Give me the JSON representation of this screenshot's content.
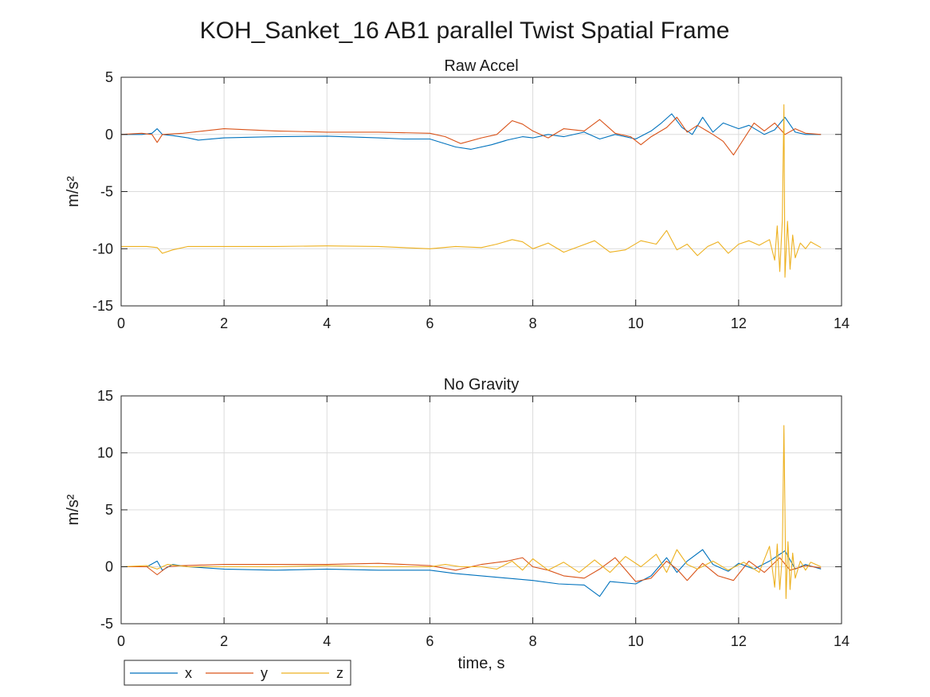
{
  "figure_title": "KOH_Sanket_16 AB1 parallel Twist Spatial Frame",
  "colors": {
    "x": "#0072BD",
    "y": "#D95319",
    "z": "#EDB120"
  },
  "legend": [
    "x",
    "y",
    "z"
  ],
  "chart_data": [
    {
      "type": "line",
      "title": "Raw Accel",
      "xlabel": "",
      "ylabel": "m/s²",
      "xlim": [
        0,
        14
      ],
      "ylim": [
        -15,
        5
      ],
      "xticks": [
        0,
        2,
        4,
        6,
        8,
        10,
        12,
        14
      ],
      "yticks": [
        -15,
        -10,
        -5,
        0,
        5
      ],
      "grid": true,
      "series": [
        {
          "name": "x",
          "points": [
            [
              0,
              0
            ],
            [
              0.4,
              0
            ],
            [
              0.6,
              0.1
            ],
            [
              0.7,
              0.5
            ],
            [
              0.8,
              0
            ],
            [
              1.0,
              -0.1
            ],
            [
              1.3,
              -0.3
            ],
            [
              1.5,
              -0.5
            ],
            [
              2,
              -0.3
            ],
            [
              3,
              -0.2
            ],
            [
              4,
              -0.15
            ],
            [
              5,
              -0.3
            ],
            [
              5.5,
              -0.4
            ],
            [
              6,
              -0.4
            ],
            [
              6.5,
              -1.1
            ],
            [
              6.8,
              -1.3
            ],
            [
              7.2,
              -0.9
            ],
            [
              7.5,
              -0.5
            ],
            [
              7.8,
              -0.2
            ],
            [
              8,
              -0.3
            ],
            [
              8.3,
              0
            ],
            [
              8.6,
              -0.2
            ],
            [
              9,
              0.2
            ],
            [
              9.3,
              -0.4
            ],
            [
              9.6,
              0
            ],
            [
              10,
              -0.4
            ],
            [
              10.3,
              0.3
            ],
            [
              10.5,
              1
            ],
            [
              10.7,
              1.8
            ],
            [
              10.9,
              0.6
            ],
            [
              11.1,
              0
            ],
            [
              11.3,
              1.5
            ],
            [
              11.5,
              0.2
            ],
            [
              11.7,
              1
            ],
            [
              12,
              0.5
            ],
            [
              12.2,
              0.8
            ],
            [
              12.5,
              0
            ],
            [
              12.7,
              0.4
            ],
            [
              12.9,
              1.5
            ],
            [
              13.1,
              0.2
            ],
            [
              13.3,
              0
            ],
            [
              13.6,
              0
            ]
          ]
        },
        {
          "name": "y",
          "points": [
            [
              0,
              0
            ],
            [
              0.4,
              0.1
            ],
            [
              0.6,
              0
            ],
            [
              0.7,
              -0.7
            ],
            [
              0.8,
              0
            ],
            [
              1.2,
              0.1
            ],
            [
              2,
              0.5
            ],
            [
              3,
              0.3
            ],
            [
              4,
              0.2
            ],
            [
              5,
              0.2
            ],
            [
              6,
              0.1
            ],
            [
              6.3,
              -0.2
            ],
            [
              6.6,
              -0.8
            ],
            [
              7,
              -0.3
            ],
            [
              7.3,
              0
            ],
            [
              7.6,
              1.2
            ],
            [
              7.8,
              0.9
            ],
            [
              8,
              0.3
            ],
            [
              8.3,
              -0.3
            ],
            [
              8.6,
              0.5
            ],
            [
              9,
              0.3
            ],
            [
              9.3,
              1.3
            ],
            [
              9.6,
              0.1
            ],
            [
              9.9,
              -0.2
            ],
            [
              10.1,
              -0.9
            ],
            [
              10.3,
              -0.2
            ],
            [
              10.6,
              0.6
            ],
            [
              10.8,
              1.5
            ],
            [
              11,
              0.2
            ],
            [
              11.2,
              0.8
            ],
            [
              11.5,
              0
            ],
            [
              11.7,
              -0.6
            ],
            [
              11.9,
              -1.8
            ],
            [
              12.1,
              -0.4
            ],
            [
              12.3,
              1
            ],
            [
              12.5,
              0.3
            ],
            [
              12.7,
              1
            ],
            [
              12.9,
              0
            ],
            [
              13.1,
              0.5
            ],
            [
              13.3,
              0.1
            ],
            [
              13.6,
              0
            ]
          ]
        },
        {
          "name": "z",
          "points": [
            [
              0,
              -9.8
            ],
            [
              0.5,
              -9.8
            ],
            [
              0.7,
              -9.9
            ],
            [
              0.8,
              -10.4
            ],
            [
              1.0,
              -10.1
            ],
            [
              1.3,
              -9.8
            ],
            [
              2,
              -9.8
            ],
            [
              3,
              -9.8
            ],
            [
              4,
              -9.75
            ],
            [
              5,
              -9.8
            ],
            [
              6,
              -10.0
            ],
            [
              6.5,
              -9.8
            ],
            [
              7,
              -9.9
            ],
            [
              7.3,
              -9.6
            ],
            [
              7.6,
              -9.2
            ],
            [
              7.8,
              -9.4
            ],
            [
              8,
              -10.0
            ],
            [
              8.3,
              -9.5
            ],
            [
              8.6,
              -10.3
            ],
            [
              8.9,
              -9.8
            ],
            [
              9.2,
              -9.3
            ],
            [
              9.5,
              -10.3
            ],
            [
              9.8,
              -10.1
            ],
            [
              10.1,
              -9.3
            ],
            [
              10.4,
              -9.6
            ],
            [
              10.6,
              -8.4
            ],
            [
              10.8,
              -10.1
            ],
            [
              11,
              -9.6
            ],
            [
              11.2,
              -10.6
            ],
            [
              11.4,
              -9.8
            ],
            [
              11.6,
              -9.4
            ],
            [
              11.8,
              -10.4
            ],
            [
              12,
              -9.6
            ],
            [
              12.2,
              -9.3
            ],
            [
              12.4,
              -9.7
            ],
            [
              12.6,
              -9.2
            ],
            [
              12.7,
              -11.0
            ],
            [
              12.75,
              -8.0
            ],
            [
              12.8,
              -12.0
            ],
            [
              12.85,
              -7.5
            ],
            [
              12.88,
              2.6
            ],
            [
              12.9,
              -12.5
            ],
            [
              12.95,
              -7.6
            ],
            [
              13.0,
              -11.8
            ],
            [
              13.05,
              -8.8
            ],
            [
              13.1,
              -10.8
            ],
            [
              13.2,
              -9.5
            ],
            [
              13.3,
              -10.0
            ],
            [
              13.4,
              -9.4
            ],
            [
              13.6,
              -9.9
            ]
          ]
        }
      ]
    },
    {
      "type": "line",
      "title": "No Gravity",
      "xlabel": "time, s",
      "ylabel": "m/s²",
      "xlim": [
        0,
        14
      ],
      "ylim": [
        -5,
        15
      ],
      "xticks": [
        0,
        2,
        4,
        6,
        8,
        10,
        12,
        14
      ],
      "yticks": [
        -5,
        0,
        5,
        10,
        15
      ],
      "grid": true,
      "series": [
        {
          "name": "x",
          "points": [
            [
              0,
              0
            ],
            [
              0.5,
              0
            ],
            [
              0.7,
              0.5
            ],
            [
              0.8,
              -0.3
            ],
            [
              1.0,
              0.2
            ],
            [
              1.3,
              0
            ],
            [
              2,
              -0.2
            ],
            [
              3,
              -0.3
            ],
            [
              4,
              -0.2
            ],
            [
              5,
              -0.3
            ],
            [
              6,
              -0.3
            ],
            [
              6.5,
              -0.6
            ],
            [
              7,
              -0.8
            ],
            [
              7.5,
              -1.0
            ],
            [
              8,
              -1.2
            ],
            [
              8.5,
              -1.5
            ],
            [
              9,
              -1.6
            ],
            [
              9.3,
              -2.6
            ],
            [
              9.5,
              -1.3
            ],
            [
              10,
              -1.5
            ],
            [
              10.3,
              -0.8
            ],
            [
              10.6,
              0.8
            ],
            [
              10.8,
              -0.5
            ],
            [
              11,
              0.5
            ],
            [
              11.3,
              1.5
            ],
            [
              11.5,
              0.2
            ],
            [
              11.8,
              -0.4
            ],
            [
              12,
              0.3
            ],
            [
              12.3,
              -0.2
            ],
            [
              12.6,
              0.5
            ],
            [
              12.9,
              1.4
            ],
            [
              13.1,
              -0.2
            ],
            [
              13.3,
              0.2
            ],
            [
              13.6,
              -0.2
            ]
          ]
        },
        {
          "name": "y",
          "points": [
            [
              0,
              0
            ],
            [
              0.5,
              0
            ],
            [
              0.7,
              -0.7
            ],
            [
              0.9,
              0
            ],
            [
              1.2,
              0.1
            ],
            [
              2,
              0.2
            ],
            [
              3,
              0.2
            ],
            [
              4,
              0.2
            ],
            [
              5,
              0.3
            ],
            [
              6,
              0.1
            ],
            [
              6.5,
              -0.3
            ],
            [
              7,
              0.2
            ],
            [
              7.5,
              0.5
            ],
            [
              7.8,
              0.8
            ],
            [
              8,
              0
            ],
            [
              8.3,
              -0.3
            ],
            [
              8.6,
              -0.8
            ],
            [
              9,
              -1
            ],
            [
              9.3,
              -0.2
            ],
            [
              9.6,
              0.8
            ],
            [
              10,
              -1.3
            ],
            [
              10.3,
              -1.0
            ],
            [
              10.6,
              0.5
            ],
            [
              10.8,
              -0.2
            ],
            [
              11,
              -1.2
            ],
            [
              11.3,
              0.3
            ],
            [
              11.6,
              -0.8
            ],
            [
              11.9,
              -1.2
            ],
            [
              12.2,
              0.5
            ],
            [
              12.5,
              -0.5
            ],
            [
              12.8,
              0.8
            ],
            [
              13,
              -0.3
            ],
            [
              13.3,
              0.1
            ],
            [
              13.6,
              -0.1
            ]
          ]
        },
        {
          "name": "z",
          "points": [
            [
              0,
              0
            ],
            [
              0.5,
              0.1
            ],
            [
              0.7,
              -0.2
            ],
            [
              0.9,
              0.2
            ],
            [
              1.3,
              0
            ],
            [
              2,
              0
            ],
            [
              3,
              0
            ],
            [
              4,
              0.1
            ],
            [
              5,
              0
            ],
            [
              6,
              0
            ],
            [
              6.3,
              0.2
            ],
            [
              6.6,
              0
            ],
            [
              7,
              0
            ],
            [
              7.3,
              -0.2
            ],
            [
              7.6,
              0.5
            ],
            [
              7.8,
              -0.3
            ],
            [
              8,
              0.7
            ],
            [
              8.3,
              -0.3
            ],
            [
              8.6,
              0.4
            ],
            [
              8.9,
              -0.5
            ],
            [
              9.2,
              0.6
            ],
            [
              9.5,
              -0.5
            ],
            [
              9.8,
              0.9
            ],
            [
              10.1,
              0
            ],
            [
              10.4,
              1.1
            ],
            [
              10.6,
              -0.5
            ],
            [
              10.8,
              1.5
            ],
            [
              11,
              0.2
            ],
            [
              11.2,
              -0.2
            ],
            [
              11.5,
              0.5
            ],
            [
              11.8,
              -0.3
            ],
            [
              12.1,
              0.4
            ],
            [
              12.4,
              -0.5
            ],
            [
              12.6,
              1.8
            ],
            [
              12.7,
              -1.8
            ],
            [
              12.75,
              2.0
            ],
            [
              12.8,
              -2.0
            ],
            [
              12.85,
              1.0
            ],
            [
              12.88,
              12.4
            ],
            [
              12.92,
              -2.8
            ],
            [
              12.96,
              2.2
            ],
            [
              13.0,
              -2.0
            ],
            [
              13.05,
              1.2
            ],
            [
              13.1,
              -1.0
            ],
            [
              13.2,
              0.5
            ],
            [
              13.3,
              -0.3
            ],
            [
              13.4,
              0.4
            ],
            [
              13.6,
              0
            ]
          ]
        }
      ]
    }
  ]
}
